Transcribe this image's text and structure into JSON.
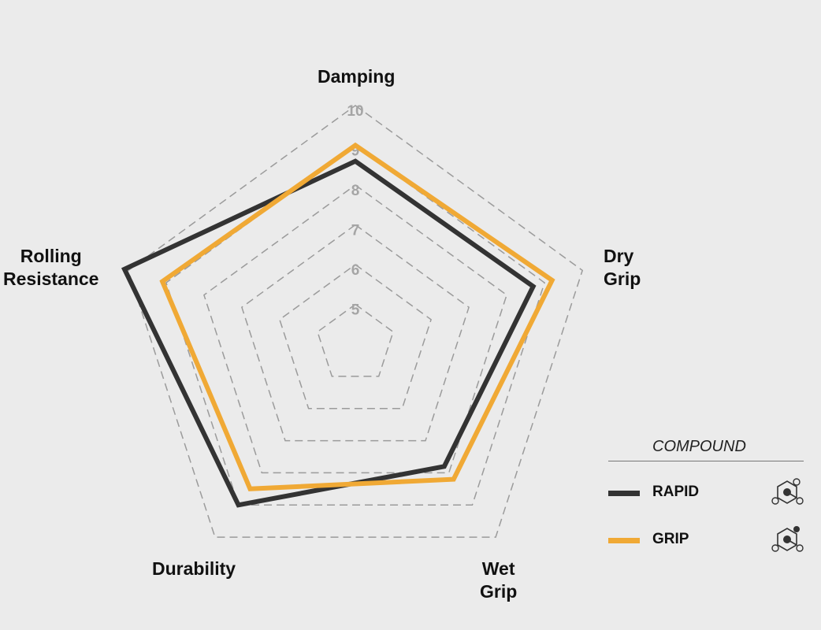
{
  "chart_data": {
    "type": "radar",
    "axes": [
      {
        "key": "damping",
        "lines": [
          "Damping"
        ]
      },
      {
        "key": "dry_grip",
        "lines": [
          "Dry",
          "Grip"
        ]
      },
      {
        "key": "wet_grip",
        "lines": [
          "Wet",
          "Grip"
        ]
      },
      {
        "key": "durability",
        "lines": [
          "Durability"
        ]
      },
      {
        "key": "rolling_resistance",
        "lines": [
          "Rolling",
          "Resistance"
        ]
      }
    ],
    "range": [
      4,
      10
    ],
    "grid_levels": [
      5,
      6,
      7,
      8,
      9,
      10
    ],
    "tick_labels": [
      "5",
      "6",
      "7",
      "8",
      "9",
      "10"
    ],
    "series": [
      {
        "name": "RAPID",
        "color": "#333333",
        "values": [
          8.6,
          8.7,
          7.8,
          9.0,
          10.1
        ]
      },
      {
        "name": "GRIP",
        "color": "#f0a935",
        "values": [
          9.0,
          9.2,
          8.2,
          8.5,
          9.1
        ]
      }
    ],
    "legend": {
      "title": "COMPOUND",
      "position": "bottom-right",
      "icon": "compound-molecule-icon"
    },
    "grid": "dashed",
    "colors": {
      "grid": "#9b9b9b",
      "tick": "#a5a5a5",
      "background": "#ebebeb"
    }
  }
}
